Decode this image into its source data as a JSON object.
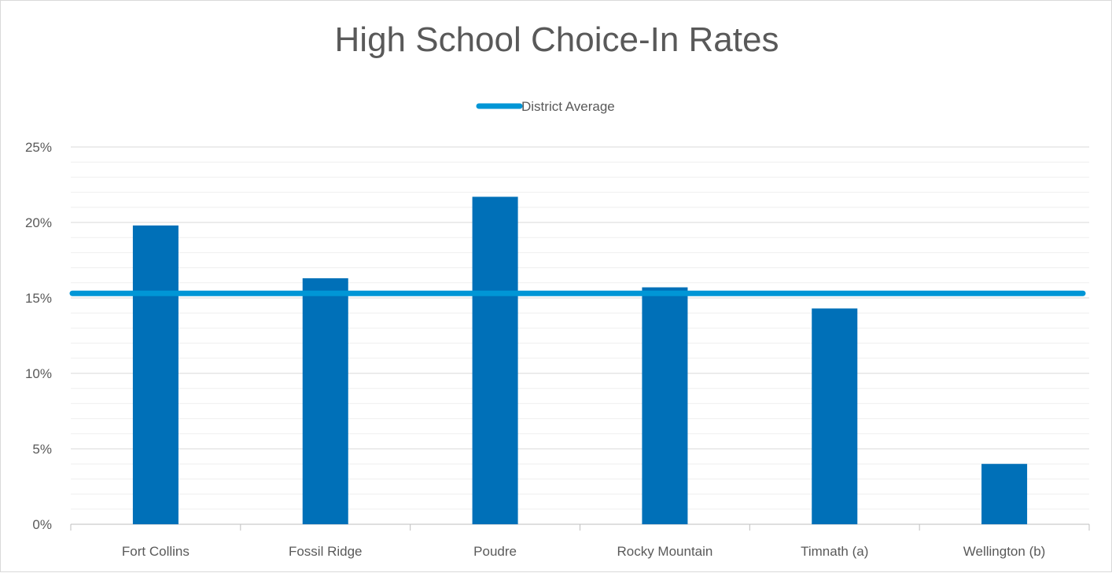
{
  "chart_data": {
    "type": "bar",
    "title": "High School Choice-In Rates",
    "categories": [
      "Fort Collins",
      "Fossil Ridge",
      "Poudre",
      "Rocky Mountain",
      "Timnath (a)",
      "Wellington (b)"
    ],
    "series": [
      {
        "values": [
          19.8,
          16.3,
          21.7,
          15.7,
          14.3,
          4.0
        ]
      }
    ],
    "reference_line": {
      "name": "District Average",
      "value": 15.3
    },
    "ylim": [
      0,
      25
    ],
    "y_ticks": [
      0,
      5,
      10,
      15,
      20,
      25
    ],
    "y_tick_labels": [
      "0%",
      "5%",
      "10%",
      "15%",
      "20%",
      "25%"
    ],
    "minor_gridlines_step": 1,
    "grid": true,
    "legend_position": "top-center",
    "xlabel": "",
    "ylabel": "",
    "colors": {
      "bar": "#0070b8",
      "line": "#0096d6",
      "grid_major": "#d9d9d9",
      "grid_minor": "#efefef",
      "text": "#595959"
    }
  }
}
